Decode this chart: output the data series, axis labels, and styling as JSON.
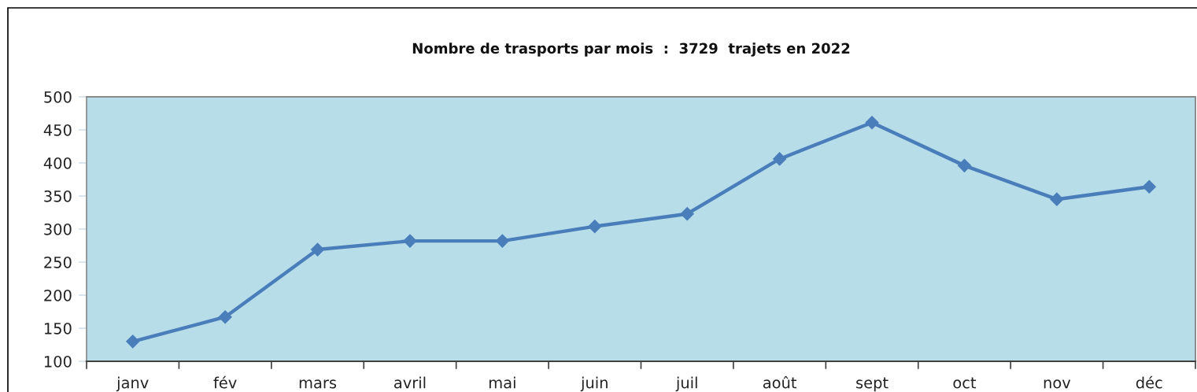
{
  "chart_data": {
    "type": "line",
    "title": "Nombre de trasports par mois  :  3729  trajets en 2022",
    "categories": [
      "janv",
      "fév",
      "mars",
      "avril",
      "mai",
      "juin",
      "juil",
      "août",
      "sept",
      "oct",
      "nov",
      "déc"
    ],
    "series": [
      {
        "color": "#4a7ebb",
        "values": [
          130,
          167,
          269,
          282,
          282,
          304,
          323,
          406,
          461,
          396,
          345,
          364
        ]
      }
    ],
    "ylim": [
      100,
      500
    ],
    "yticks": [
      100,
      150,
      200,
      250,
      300,
      350,
      400,
      450,
      500
    ],
    "marker": "diamond",
    "line_style": "solid"
  }
}
